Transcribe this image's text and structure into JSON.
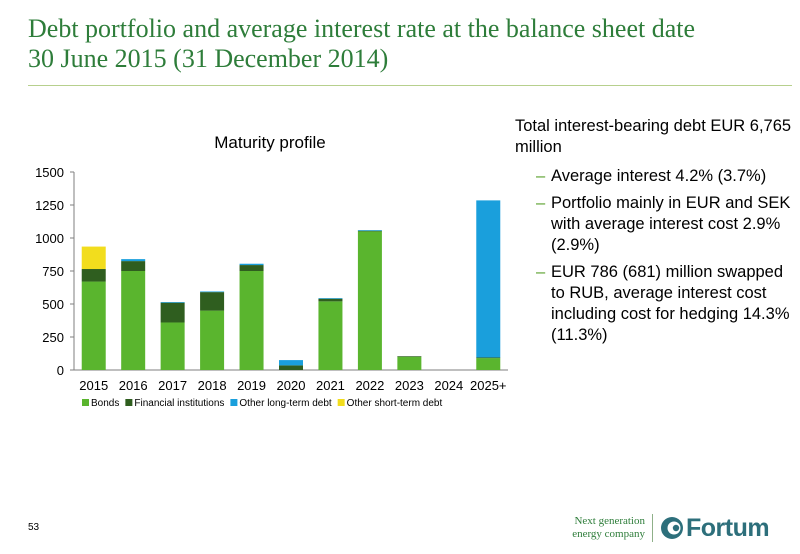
{
  "slide": {
    "title_line1": "Debt portfolio and average interest rate at the balance sheet date",
    "title_line2": "30 June 2015 (31 December 2014)",
    "page_number": "53"
  },
  "right_text": {
    "lead": "Total interest-bearing debt EUR 6,765 million",
    "bullets": [
      "Average interest 4.2% (3.7%)",
      "Portfolio mainly in EUR and SEK with average interest cost 2.9% (2.9%)",
      "EUR 786 (681) million swapped to RUB, average interest cost including cost for hedging 14.3% (11.3%)"
    ]
  },
  "footer": {
    "tagline_line1": "Next generation",
    "tagline_line2": "energy company",
    "logo_text": "Fortum",
    "logo_icon": "fortum-logo-icon"
  },
  "chart_data": {
    "type": "bar",
    "stacked": true,
    "title": "Maturity profile",
    "xlabel": "",
    "ylabel": "",
    "categories": [
      "2015",
      "2016",
      "2017",
      "2018",
      "2019",
      "2020",
      "2021",
      "2022",
      "2023",
      "2024",
      "2025+"
    ],
    "ylim": [
      0,
      1500
    ],
    "yticks": [
      0,
      250,
      500,
      750,
      1000,
      1250,
      1500
    ],
    "grid": false,
    "legend_position": "bottom",
    "series": [
      {
        "name": "Bonds",
        "color": "#5ab52e",
        "values": [
          670,
          750,
          360,
          450,
          750,
          0,
          520,
          1050,
          100,
          0,
          90
        ]
      },
      {
        "name": "Financial institutions",
        "color": "#2f5e1f",
        "values": [
          95,
          75,
          150,
          140,
          45,
          35,
          20,
          5,
          5,
          0,
          5
        ]
      },
      {
        "name": "Other long-term debt",
        "color": "#1a9fdc",
        "values": [
          0,
          15,
          5,
          5,
          10,
          40,
          5,
          5,
          0,
          0,
          1190
        ]
      },
      {
        "name": "Other short-term debt",
        "color": "#f2dd1d",
        "values": [
          170,
          0,
          0,
          0,
          0,
          0,
          0,
          0,
          0,
          0,
          0
        ]
      }
    ]
  }
}
